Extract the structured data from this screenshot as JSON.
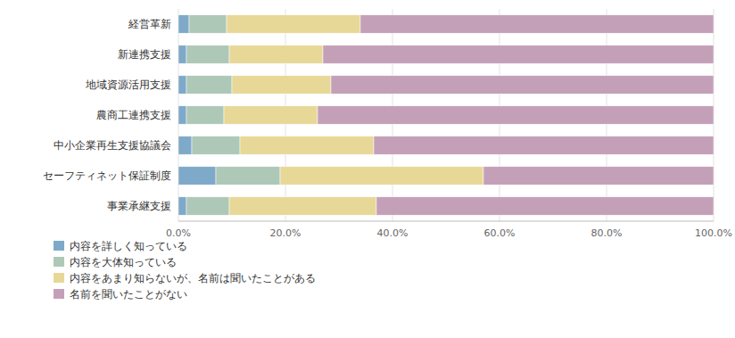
{
  "chart_data": {
    "type": "bar",
    "orientation": "horizontal",
    "stacked": true,
    "categories": [
      "経営革新",
      "新連携支援",
      "地域資源活用支援",
      "農商工連携支援",
      "中小企業再生支援協議会",
      "セーフティネット保証制度",
      "事業承継支援"
    ],
    "series": [
      {
        "name": "内容を詳しく知っている",
        "color": "#7fa9c9",
        "values": [
          2.0,
          1.5,
          1.5,
          1.5,
          2.5,
          7.0,
          1.5
        ]
      },
      {
        "name": "内容を大体知っている",
        "color": "#aec8b8",
        "values": [
          7.0,
          8.0,
          8.5,
          7.0,
          9.0,
          12.0,
          8.0
        ]
      },
      {
        "name": "内容をあまり知らないが、名前は聞いたことがある",
        "color": "#e8d898",
        "values": [
          25.0,
          17.5,
          18.5,
          17.5,
          25.0,
          38.0,
          27.5
        ]
      },
      {
        "name": "名前を聞いたことがない",
        "color": "#c4a0b8",
        "values": [
          66.0,
          73.0,
          71.5,
          74.0,
          63.5,
          43.0,
          63.0
        ]
      }
    ],
    "xlim": [
      0,
      100
    ],
    "xticks": [
      {
        "value": 0,
        "label": "0.0%"
      },
      {
        "value": 20,
        "label": "20.0%"
      },
      {
        "value": 40,
        "label": "40.0%"
      },
      {
        "value": 60,
        "label": "60.0%"
      },
      {
        "value": 80,
        "label": "80.0%"
      },
      {
        "value": 100,
        "label": "100.0%"
      }
    ],
    "grid": true,
    "legend": "bottom"
  }
}
